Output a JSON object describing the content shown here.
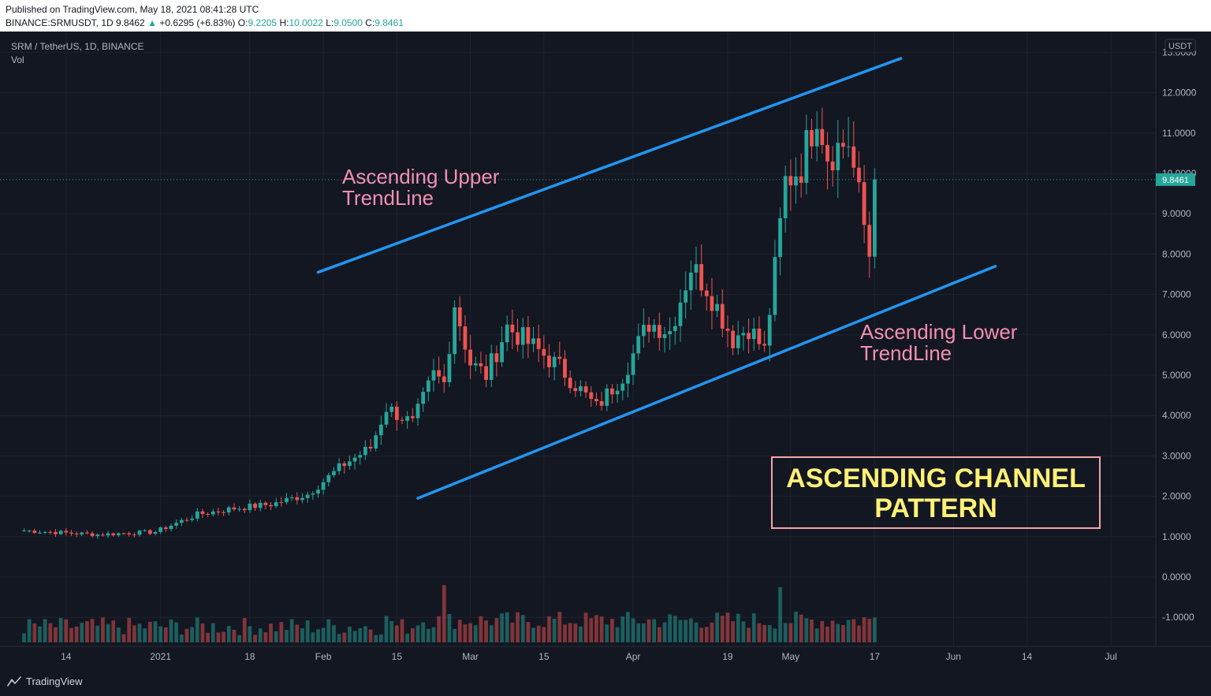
{
  "header": {
    "published": "Published on TradingView.com, May 18, 2021 08:41:28 UTC",
    "symbol": "BINANCE:SRMUSDT, 1D",
    "price": "9.8462",
    "change": "+0.6295 (+6.83%)",
    "o_label": "O:",
    "o_value": "9.2205",
    "h_label": "H:",
    "h_value": "10.0022",
    "l_label": "L:",
    "l_value": "9.0500",
    "c_label": "C:",
    "c_value": "9.8461"
  },
  "legend": {
    "title": "SRM / TetherUS, 1D, BINANCE",
    "vol": "Vol"
  },
  "annotations": {
    "upper_line1": "Ascending Upper",
    "upper_line2": "TrendLine",
    "lower_line1": "Ascending Lower",
    "lower_line2": "TrendLine",
    "pattern_line1": "ASCENDING CHANNEL",
    "pattern_line2": "PATTERN"
  },
  "footer": {
    "brand": "TradingView"
  },
  "colors": {
    "bullish": "#26a69a",
    "bearish": "#ef5350",
    "trendline": "#2196f3",
    "annotation": "#f48fb1",
    "pattern_text": "#fff176",
    "pattern_border": "#f4a6a6"
  },
  "chart_data": {
    "type": "candlestick",
    "y_axis_unit": "USDT",
    "y_ticks": [
      "13.0000",
      "12.0000",
      "11.0000",
      "10.0000",
      "9.0000",
      "8.0000",
      "7.0000",
      "6.0000",
      "5.0000",
      "4.0000",
      "3.0000",
      "2.0000",
      "1.0000",
      "0.0000",
      "-1.0000"
    ],
    "x_ticks": [
      "14",
      "2021",
      "18",
      "Feb",
      "15",
      "Mar",
      "15",
      "Apr",
      "19",
      "May",
      "17",
      "Jun",
      "14",
      "Jul"
    ],
    "last_price_label": "9.8461",
    "price_range": [
      -1.6,
      13.2
    ],
    "close_path": [
      [
        "2020-12-06",
        1.15
      ],
      [
        "2020-12-20",
        1.05
      ],
      [
        "2020-12-31",
        1.12
      ],
      [
        "2021-01-08",
        1.55
      ],
      [
        "2021-01-15",
        1.7
      ],
      [
        "2021-01-22",
        1.8
      ],
      [
        "2021-01-29",
        2.05
      ],
      [
        "2021-02-05",
        2.8
      ],
      [
        "2021-02-10",
        3.2
      ],
      [
        "2021-02-13",
        4.2
      ],
      [
        "2021-02-18",
        3.8
      ],
      [
        "2021-02-22",
        5.0
      ],
      [
        "2021-02-24",
        4.8
      ],
      [
        "2021-02-26",
        6.8
      ],
      [
        "2021-03-01",
        5.3
      ],
      [
        "2021-03-04",
        5.0
      ],
      [
        "2021-03-08",
        6.2
      ],
      [
        "2021-03-12",
        5.8
      ],
      [
        "2021-03-18",
        5.2
      ],
      [
        "2021-03-25",
        4.2
      ],
      [
        "2021-03-30",
        5.0
      ],
      [
        "2021-04-04",
        6.3
      ],
      [
        "2021-04-08",
        6.1
      ],
      [
        "2021-04-12",
        7.7
      ],
      [
        "2021-04-15",
        7.2
      ],
      [
        "2021-04-20",
        5.9
      ],
      [
        "2021-04-23",
        6.2
      ],
      [
        "2021-04-26",
        5.6
      ],
      [
        "2021-04-28",
        7.6
      ],
      [
        "2021-04-30",
        9.8
      ],
      [
        "2021-05-03",
        10.2
      ],
      [
        "2021-05-06",
        11.6
      ],
      [
        "2021-05-08",
        10.5
      ],
      [
        "2021-05-12",
        10.8
      ],
      [
        "2021-05-14",
        9.4
      ],
      [
        "2021-05-16",
        8.0
      ],
      [
        "2021-05-17",
        9.85
      ]
    ],
    "volume_spikes": [
      [
        "2021-02-24",
        -0.2
      ],
      [
        "2021-04-29",
        -0.25
      ],
      [
        "2021-05-15",
        -1.0
      ]
    ],
    "trendlines": [
      {
        "name": "Ascending Upper TrendLine",
        "from": [
          "2021-01-31",
          7.55
        ],
        "to": [
          "2021-05-22",
          12.85
        ]
      },
      {
        "name": "Ascending Lower TrendLine",
        "from": [
          "2021-02-19",
          1.95
        ],
        "to": [
          "2021-06-09",
          7.7
        ]
      }
    ]
  }
}
